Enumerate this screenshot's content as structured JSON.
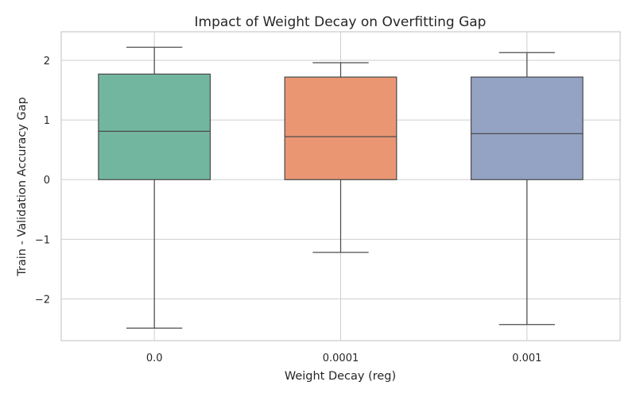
{
  "chart_data": {
    "type": "box",
    "title": "Impact of Weight Decay on Overfitting Gap",
    "xlabel": "Weight Decay (reg)",
    "ylabel": "Train - Validation Accuracy Gap",
    "categories": [
      "0.0",
      "0.0001",
      "0.001"
    ],
    "yticks": [
      -2,
      -1,
      0,
      1,
      2
    ],
    "ylim": [
      -2.7,
      2.48
    ],
    "grid": true,
    "boxes": [
      {
        "category": "0.0",
        "whisker_low": -2.49,
        "q1": 0.0,
        "median": 0.81,
        "q3": 1.77,
        "whisker_high": 2.22,
        "color": "#72b6a0"
      },
      {
        "category": "0.0001",
        "whisker_low": -1.22,
        "q1": 0.0,
        "median": 0.72,
        "q3": 1.72,
        "whisker_high": 1.96,
        "color": "#ea9673"
      },
      {
        "category": "0.001",
        "whisker_low": -2.43,
        "q1": 0.0,
        "median": 0.77,
        "q3": 1.72,
        "whisker_high": 2.13,
        "color": "#94a3c4"
      }
    ]
  }
}
